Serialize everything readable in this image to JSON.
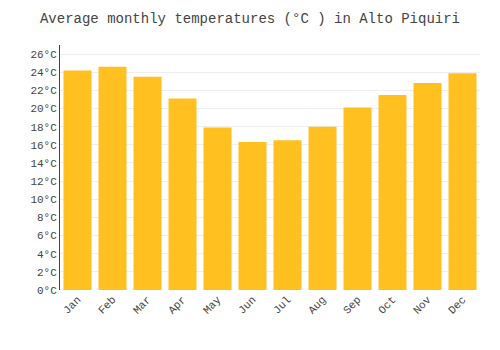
{
  "chart_data": {
    "type": "bar",
    "title": "Average monthly temperatures (°C ) in Alto Piquiri",
    "categories": [
      "Jan",
      "Feb",
      "Mar",
      "Apr",
      "May",
      "Jun",
      "Jul",
      "Aug",
      "Sep",
      "Oct",
      "Nov",
      "Dec"
    ],
    "values": [
      24.2,
      24.6,
      23.5,
      21.1,
      17.9,
      16.3,
      16.5,
      18.0,
      20.1,
      21.5,
      22.8,
      23.9
    ],
    "color": "#FFC020",
    "ylim": [
      0,
      27
    ],
    "yticks": [
      {
        "value": 0,
        "label": "0°C"
      },
      {
        "value": 2,
        "label": "2°C"
      },
      {
        "value": 4,
        "label": "4°C"
      },
      {
        "value": 6,
        "label": "6°C"
      },
      {
        "value": 8,
        "label": "8°C"
      },
      {
        "value": 10,
        "label": "10°C"
      },
      {
        "value": 12,
        "label": "12°C"
      },
      {
        "value": 14,
        "label": "14°C"
      },
      {
        "value": 16,
        "label": "16°C"
      },
      {
        "value": 18,
        "label": "18°C"
      },
      {
        "value": 20,
        "label": "20°C"
      },
      {
        "value": 22,
        "label": "22°C"
      },
      {
        "value": 24,
        "label": "24°C"
      },
      {
        "value": 26,
        "label": "26°C"
      }
    ],
    "grid": true
  }
}
